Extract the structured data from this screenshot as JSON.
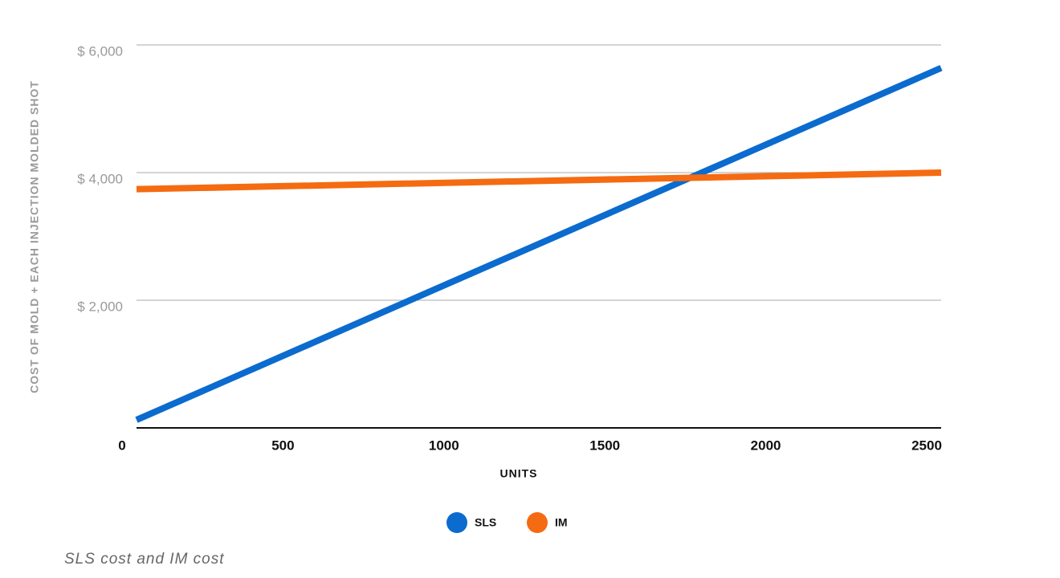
{
  "chart_data": {
    "type": "line",
    "y_label": "COST OF MOLD + EACH INJECTION MOLDED SHOT",
    "x_label": "UNITS",
    "caption": "SLS cost and IM cost",
    "x": [
      0,
      2500
    ],
    "series": [
      {
        "name": "SLS",
        "color": "#0b6bce",
        "values": [
          125,
          5640
        ]
      },
      {
        "name": "IM",
        "color": "#f56b12",
        "values": [
          3740,
          4000
        ]
      }
    ],
    "xlim": [
      0,
      2500
    ],
    "xticks": [
      0,
      500,
      1000,
      1500,
      2000,
      2500
    ],
    "ylim": [
      0,
      6000
    ],
    "yticks": [
      {
        "value": 2000,
        "label": "$ 2,000"
      },
      {
        "value": 4000,
        "label": "$ 4,000"
      },
      {
        "value": 6000,
        "label": "$ 6,000"
      }
    ],
    "grid": true,
    "legend": "bottom"
  }
}
